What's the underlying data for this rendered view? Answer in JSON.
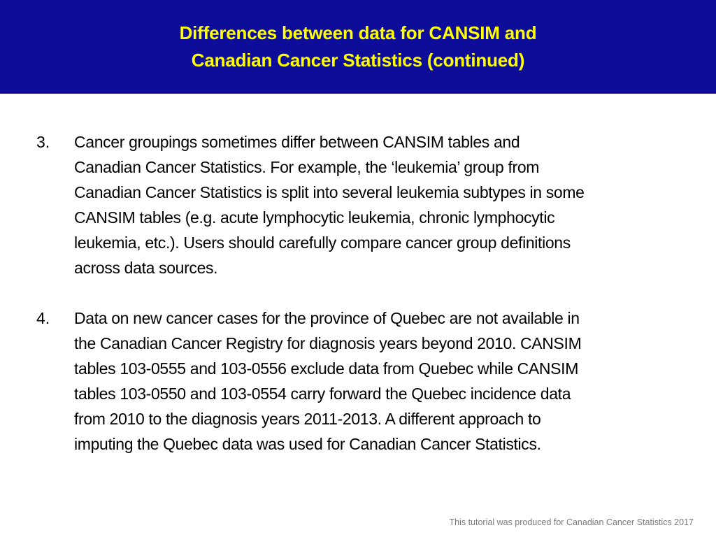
{
  "header": {
    "title_lines": [
      "Differences between data for CANSIM and",
      "Canadian Cancer Statistics (continued)"
    ],
    "background_color": "#0d0d99",
    "title_color": "#ffff00"
  },
  "items": [
    {
      "number": "3.",
      "lines": [
        "Cancer groupings sometimes differ between CANSIM tables and",
        "Canadian Cancer Statistics. For example, the ‘leukemia’ group from",
        "Canadian Cancer Statistics is split into several leukemia subtypes in some",
        "CANSIM tables (e.g. acute lymphocytic leukemia, chronic lymphocytic",
        "leukemia, etc.). Users should carefully compare cancer group definitions",
        "across data sources."
      ]
    },
    {
      "number": "4.",
      "lines": [
        "Data on new cancer cases for the province of Quebec are not available in",
        "the Canadian Cancer Registry for diagnosis years beyond 2010. CANSIM",
        "tables 103-0555  and 103-0556 exclude data from Quebec while CANSIM",
        "tables 103-0550  and 103-0554 carry forward the Quebec incidence data",
        "from 2010 to the diagnosis years 2011-2013. A different approach to",
        "imputing the Quebec data was used for Canadian Cancer Statistics."
      ]
    }
  ],
  "footer": {
    "text": "This tutorial was produced for Canadian Cancer Statistics 2017"
  }
}
